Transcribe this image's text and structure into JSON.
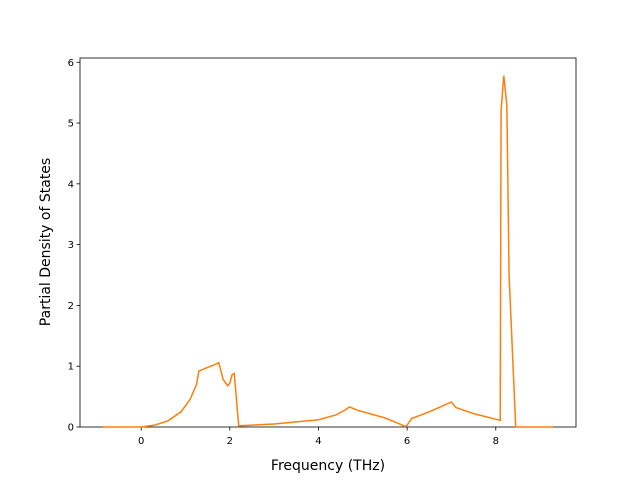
{
  "chart_data": {
    "type": "line",
    "x_label": "Frequency (THz)",
    "y_label": "Partial Density of States",
    "x": [
      -0.87,
      0,
      0.3,
      0.6,
      0.9,
      1.1,
      1.25,
      1.3,
      1.5,
      1.7,
      1.75,
      1.85,
      1.95,
      2.0,
      2.05,
      2.1,
      2.2,
      3,
      4,
      4.4,
      4.6,
      4.7,
      4.9,
      5.5,
      5.8,
      5.95,
      6.0,
      6.1,
      6.5,
      6.9,
      7.0,
      7.1,
      7.5,
      8.1,
      8.12,
      8.18,
      8.25,
      8.3,
      8.45,
      9.3
    ],
    "values": [
      0,
      0,
      0.03,
      0.1,
      0.25,
      0.45,
      0.7,
      0.92,
      0.98,
      1.04,
      1.06,
      0.78,
      0.68,
      0.72,
      0.86,
      0.88,
      0.02,
      0.05,
      0.12,
      0.2,
      0.28,
      0.33,
      0.27,
      0.15,
      0.06,
      0.01,
      0.03,
      0.14,
      0.25,
      0.38,
      0.41,
      0.32,
      0.22,
      0.11,
      5.2,
      5.78,
      5.3,
      2.5,
      0,
      0
    ],
    "color": "#ff7f0e",
    "xlim": [
      -1.38,
      9.81
    ],
    "xticks": [
      0,
      2,
      4,
      6,
      8
    ],
    "ylim": [
      0,
      6.07
    ],
    "yticks": [
      0,
      1,
      2,
      3,
      4,
      5,
      6
    ]
  }
}
